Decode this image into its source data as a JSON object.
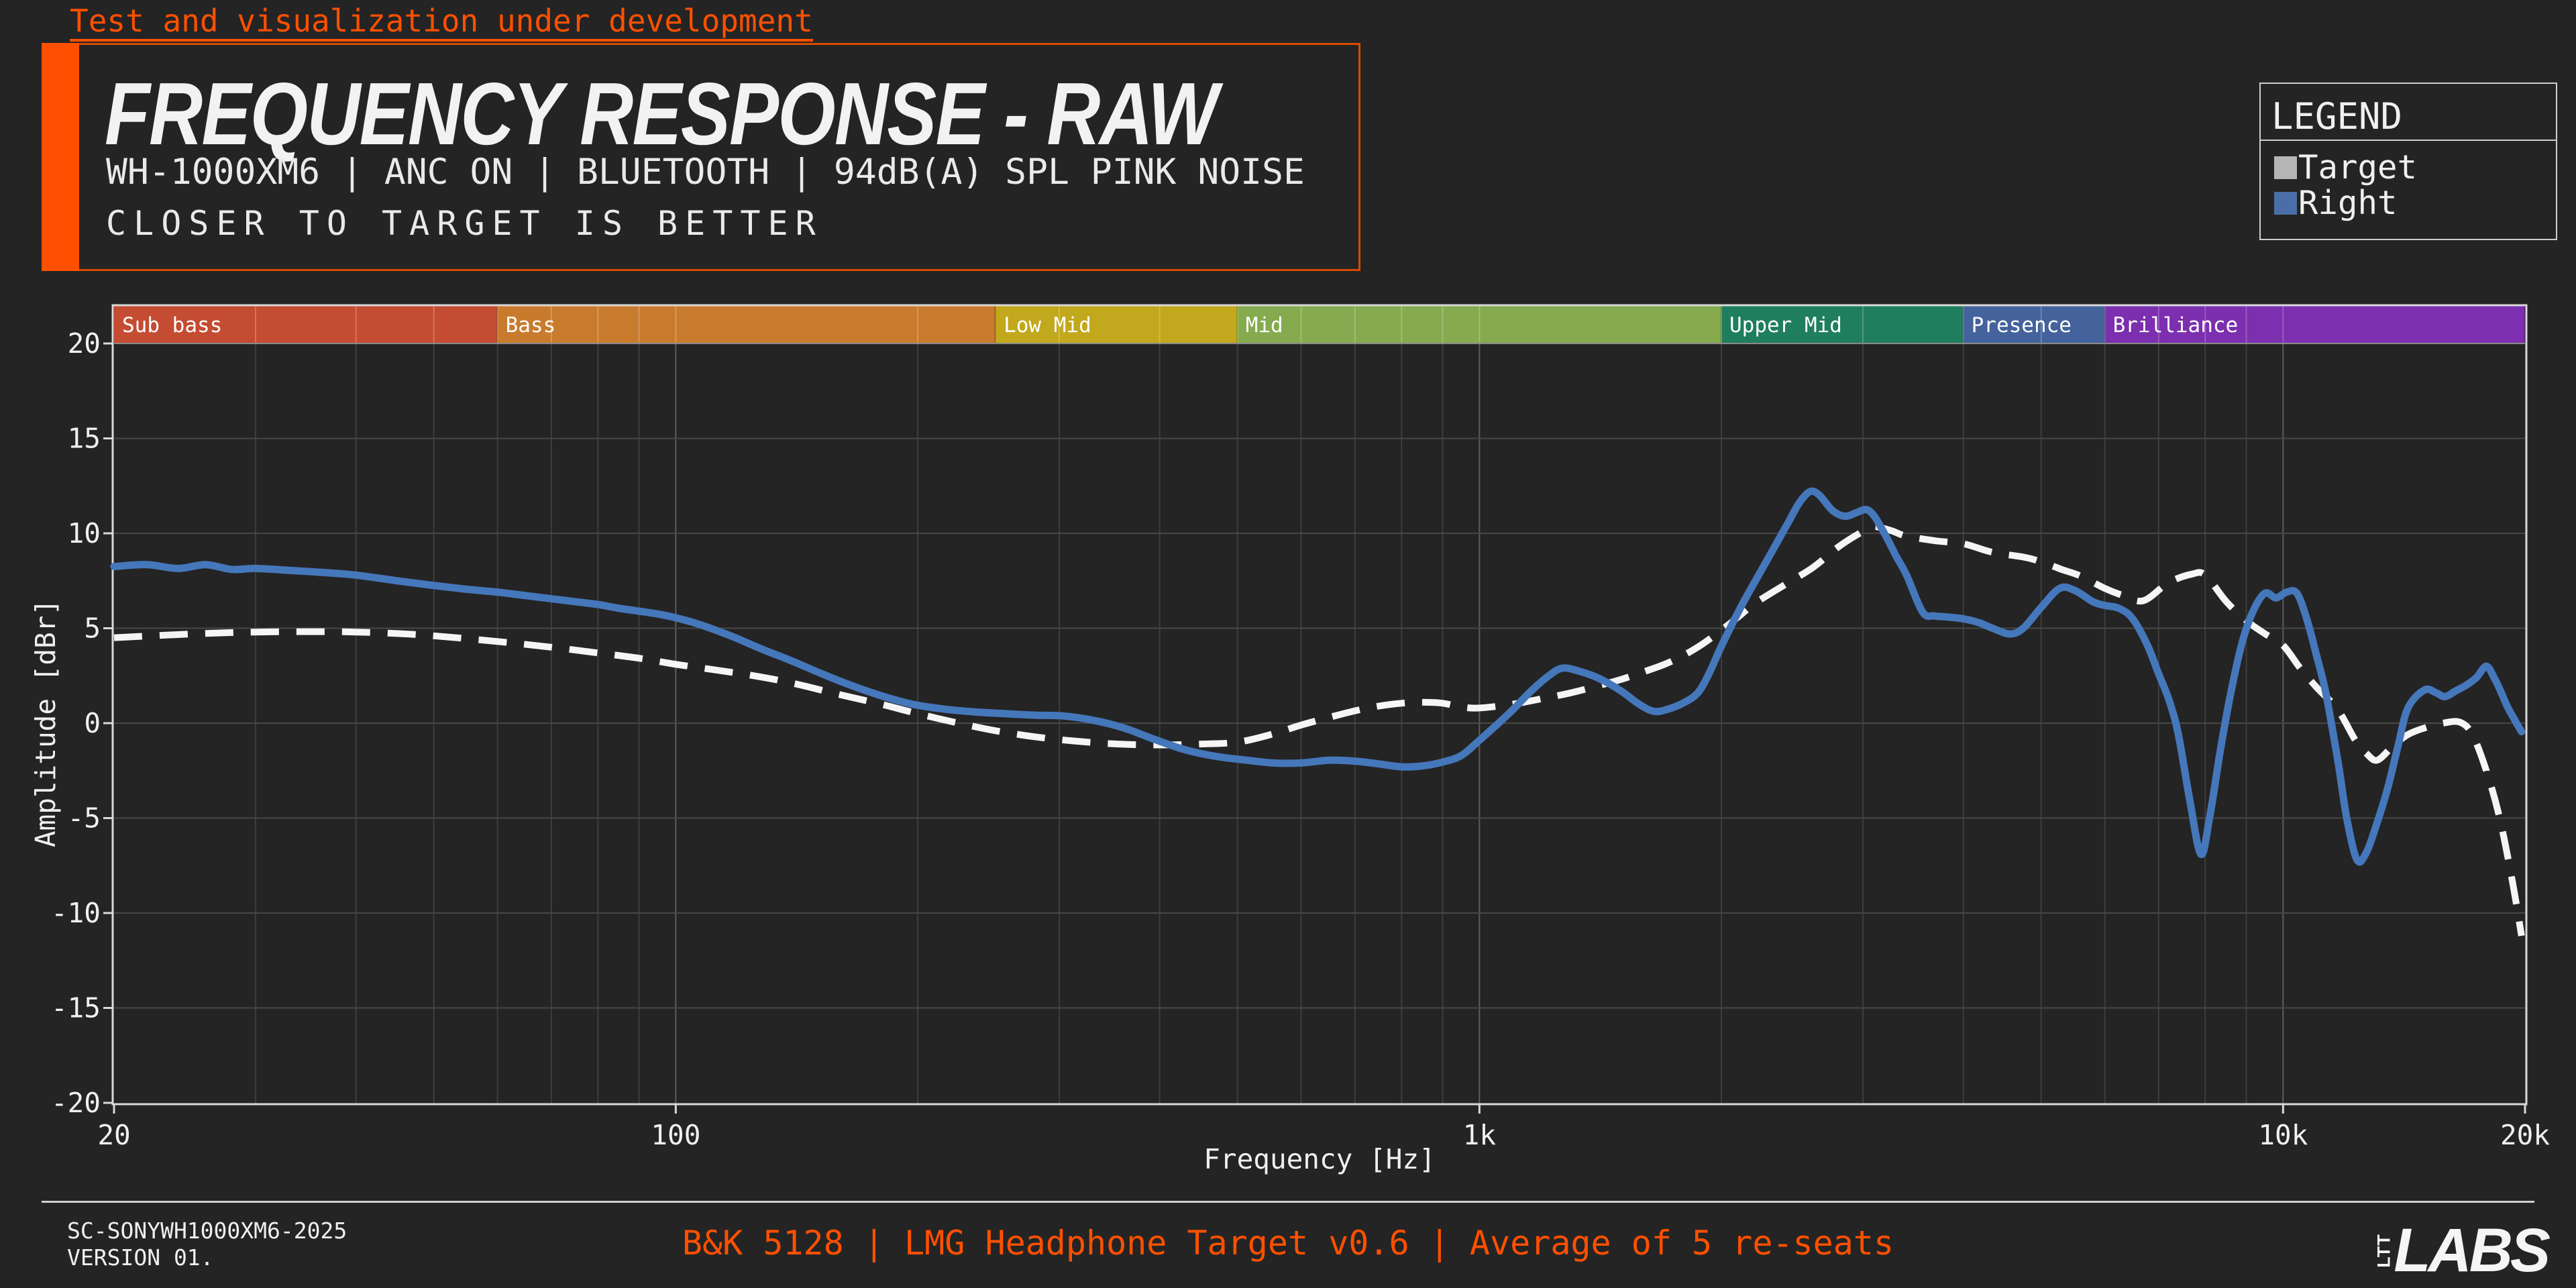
{
  "dev_notice": "Test and visualization under development",
  "header": {
    "title": "FREQUENCY RESPONSE - RAW",
    "subtitle": "WH-1000XM6 | ANC ON | BLUETOOTH | 94dB(A) SPL PINK NOISE",
    "tagline": "CLOSER TO TARGET IS BETTER"
  },
  "legend": {
    "title": "LEGEND",
    "items": [
      {
        "label": "Target",
        "color": "#b5b5b5"
      },
      {
        "label": "Right",
        "color": "#4a6fa8"
      }
    ]
  },
  "footer": {
    "left_line1": "SC-SONYWH1000XM6-2025",
    "left_line2": "VERSION 01.",
    "center": "B&K 5128 | LMG Headphone Target v0.6 | Average of 5 re-seats",
    "logo_small": "LTT",
    "logo_large": "LABS"
  },
  "colors": {
    "background": "#242424",
    "accent": "#fe5000",
    "text": "#f0f0f0",
    "grid_minor": "#3e3e3e",
    "grid_major": "#5c5c5c",
    "grid_horizontal": "#474747",
    "spine": "#d9d9d9",
    "band_grid_overlay": "rgba(255,255,255,0.22)"
  },
  "chart_data": {
    "type": "line",
    "title": "FREQUENCY RESPONSE - RAW",
    "xlabel": "Frequency [Hz]",
    "ylabel": "Amplitude [dBr]",
    "x_scale": "log",
    "xlim": [
      20,
      20000
    ],
    "ylim": [
      -20,
      20
    ],
    "grid": true,
    "legend_position": "top-right",
    "x_ticks": [
      {
        "value": 20,
        "label": "20"
      },
      {
        "value": 100,
        "label": "100"
      },
      {
        "value": 1000,
        "label": "1k"
      },
      {
        "value": 10000,
        "label": "10k"
      },
      {
        "value": 20000,
        "label": "20k"
      }
    ],
    "x_minor_gridlines": [
      30,
      40,
      50,
      60,
      70,
      80,
      90,
      200,
      300,
      400,
      500,
      600,
      700,
      800,
      900,
      2000,
      3000,
      4000,
      5000,
      6000,
      7000,
      8000,
      9000
    ],
    "y_ticks": [
      20,
      15,
      10,
      5,
      0,
      -5,
      -10,
      -15,
      -20
    ],
    "bands": [
      {
        "label": "Sub bass",
        "from": 20,
        "to": 60,
        "color": "#c44c32"
      },
      {
        "label": "Bass",
        "from": 60,
        "to": 250,
        "color": "#c97b2d"
      },
      {
        "label": "Low Mid",
        "from": 250,
        "to": 500,
        "color": "#c2a81c"
      },
      {
        "label": "Mid",
        "from": 500,
        "to": 2000,
        "color": "#85ab4e"
      },
      {
        "label": "Upper Mid",
        "from": 2000,
        "to": 4000,
        "color": "#1f7e5e"
      },
      {
        "label": "Presence",
        "from": 4000,
        "to": 6000,
        "color": "#44639c"
      },
      {
        "label": "Brilliance",
        "from": 6000,
        "to": 20000,
        "color": "#7c2fae"
      }
    ],
    "series": [
      {
        "name": "Target",
        "style": "dashed",
        "color": "#f5f5f5",
        "points": [
          [
            20,
            4.5
          ],
          [
            25,
            4.7
          ],
          [
            30,
            4.8
          ],
          [
            36,
            4.82
          ],
          [
            40,
            4.8
          ],
          [
            45,
            4.72
          ],
          [
            50,
            4.6
          ],
          [
            60,
            4.3
          ],
          [
            70,
            4.0
          ],
          [
            80,
            3.7
          ],
          [
            90,
            3.42
          ],
          [
            100,
            3.1
          ],
          [
            110,
            2.85
          ],
          [
            125,
            2.5
          ],
          [
            140,
            2.1
          ],
          [
            160,
            1.5
          ],
          [
            180,
            1.0
          ],
          [
            200,
            0.5
          ],
          [
            225,
            0.0
          ],
          [
            250,
            -0.4
          ],
          [
            280,
            -0.72
          ],
          [
            315,
            -0.95
          ],
          [
            355,
            -1.1
          ],
          [
            400,
            -1.15
          ],
          [
            450,
            -1.1
          ],
          [
            500,
            -1.0
          ],
          [
            550,
            -0.6
          ],
          [
            600,
            -0.1
          ],
          [
            650,
            0.3
          ],
          [
            700,
            0.65
          ],
          [
            750,
            0.9
          ],
          [
            800,
            1.05
          ],
          [
            850,
            1.1
          ],
          [
            900,
            1.05
          ],
          [
            950,
            0.85
          ],
          [
            1000,
            0.8
          ],
          [
            1100,
            1.0
          ],
          [
            1200,
            1.3
          ],
          [
            1300,
            1.6
          ],
          [
            1400,
            1.95
          ],
          [
            1500,
            2.3
          ],
          [
            1600,
            2.7
          ],
          [
            1700,
            3.1
          ],
          [
            1800,
            3.6
          ],
          [
            1900,
            4.2
          ],
          [
            2000,
            4.9
          ],
          [
            2100,
            5.6
          ],
          [
            2200,
            6.3
          ],
          [
            2400,
            7.3
          ],
          [
            2600,
            8.2
          ],
          [
            2800,
            9.3
          ],
          [
            3000,
            10.1
          ],
          [
            3100,
            10.35
          ],
          [
            3250,
            10.15
          ],
          [
            3400,
            9.85
          ],
          [
            3700,
            9.6
          ],
          [
            4000,
            9.45
          ],
          [
            4350,
            9.0
          ],
          [
            4750,
            8.75
          ],
          [
            5000,
            8.5
          ],
          [
            5300,
            8.1
          ],
          [
            5600,
            7.75
          ],
          [
            6000,
            7.1
          ],
          [
            6300,
            6.75
          ],
          [
            6700,
            6.45
          ],
          [
            7200,
            7.4
          ],
          [
            7700,
            7.85
          ],
          [
            8000,
            7.8
          ],
          [
            8500,
            6.4
          ],
          [
            9000,
            5.4
          ],
          [
            9500,
            4.7
          ],
          [
            10000,
            4.1
          ],
          [
            10500,
            2.9
          ],
          [
            11000,
            1.9
          ],
          [
            11700,
            0.7
          ],
          [
            12300,
            -0.9
          ],
          [
            12700,
            -1.6
          ],
          [
            13100,
            -1.95
          ],
          [
            13700,
            -1.2
          ],
          [
            14300,
            -0.6
          ],
          [
            15000,
            -0.25
          ],
          [
            15800,
            0.0
          ],
          [
            16600,
            0.05
          ],
          [
            17200,
            -0.6
          ],
          [
            17900,
            -2.5
          ],
          [
            18600,
            -5.0
          ],
          [
            19300,
            -8.4
          ],
          [
            19800,
            -11.2
          ]
        ]
      },
      {
        "name": "Right",
        "style": "solid",
        "color": "#4577bb",
        "points": [
          [
            20,
            8.25
          ],
          [
            22,
            8.35
          ],
          [
            24,
            8.15
          ],
          [
            26,
            8.35
          ],
          [
            28,
            8.1
          ],
          [
            30,
            8.15
          ],
          [
            33,
            8.05
          ],
          [
            36,
            7.95
          ],
          [
            40,
            7.8
          ],
          [
            45,
            7.5
          ],
          [
            50,
            7.25
          ],
          [
            55,
            7.05
          ],
          [
            60,
            6.9
          ],
          [
            65,
            6.72
          ],
          [
            70,
            6.55
          ],
          [
            75,
            6.4
          ],
          [
            80,
            6.25
          ],
          [
            85,
            6.05
          ],
          [
            90,
            5.9
          ],
          [
            95,
            5.75
          ],
          [
            100,
            5.55
          ],
          [
            107,
            5.2
          ],
          [
            117,
            4.6
          ],
          [
            128,
            3.9
          ],
          [
            139,
            3.3
          ],
          [
            152,
            2.6
          ],
          [
            165,
            2.0
          ],
          [
            180,
            1.45
          ],
          [
            197,
            1.0
          ],
          [
            215,
            0.75
          ],
          [
            234,
            0.6
          ],
          [
            256,
            0.5
          ],
          [
            280,
            0.42
          ],
          [
            303,
            0.38
          ],
          [
            331,
            0.15
          ],
          [
            361,
            -0.25
          ],
          [
            394,
            -0.85
          ],
          [
            430,
            -1.4
          ],
          [
            470,
            -1.75
          ],
          [
            513,
            -1.95
          ],
          [
            555,
            -2.1
          ],
          [
            600,
            -2.1
          ],
          [
            650,
            -1.95
          ],
          [
            700,
            -2.0
          ],
          [
            750,
            -2.15
          ],
          [
            800,
            -2.3
          ],
          [
            850,
            -2.25
          ],
          [
            900,
            -2.05
          ],
          [
            950,
            -1.7
          ],
          [
            1000,
            -0.9
          ],
          [
            1050,
            -0.1
          ],
          [
            1100,
            0.7
          ],
          [
            1160,
            1.7
          ],
          [
            1220,
            2.5
          ],
          [
            1270,
            2.9
          ],
          [
            1340,
            2.7
          ],
          [
            1410,
            2.35
          ],
          [
            1500,
            1.7
          ],
          [
            1580,
            1.0
          ],
          [
            1650,
            0.62
          ],
          [
            1720,
            0.75
          ],
          [
            1800,
            1.1
          ],
          [
            1870,
            1.6
          ],
          [
            1930,
            2.6
          ],
          [
            2000,
            4.05
          ],
          [
            2120,
            6.2
          ],
          [
            2260,
            8.3
          ],
          [
            2410,
            10.4
          ],
          [
            2500,
            11.6
          ],
          [
            2580,
            12.2
          ],
          [
            2650,
            12.0
          ],
          [
            2750,
            11.2
          ],
          [
            2850,
            10.9
          ],
          [
            2950,
            11.1
          ],
          [
            3030,
            11.25
          ],
          [
            3100,
            10.9
          ],
          [
            3200,
            9.9
          ],
          [
            3300,
            8.8
          ],
          [
            3400,
            7.8
          ],
          [
            3560,
            5.85
          ],
          [
            3680,
            5.65
          ],
          [
            3800,
            5.6
          ],
          [
            4000,
            5.5
          ],
          [
            4180,
            5.3
          ],
          [
            4350,
            5.0
          ],
          [
            4570,
            4.7
          ],
          [
            4750,
            5.0
          ],
          [
            5000,
            6.1
          ],
          [
            5270,
            7.1
          ],
          [
            5500,
            7.0
          ],
          [
            5800,
            6.4
          ],
          [
            6000,
            6.2
          ],
          [
            6250,
            6.05
          ],
          [
            6500,
            5.5
          ],
          [
            6780,
            4.1
          ],
          [
            7000,
            2.6
          ],
          [
            7200,
            1.3
          ],
          [
            7400,
            -0.5
          ],
          [
            7650,
            -4.0
          ],
          [
            7900,
            -6.9
          ],
          [
            8100,
            -5.0
          ],
          [
            8350,
            -1.5
          ],
          [
            8600,
            1.5
          ],
          [
            8900,
            4.3
          ],
          [
            9200,
            6.0
          ],
          [
            9500,
            6.85
          ],
          [
            9800,
            6.6
          ],
          [
            10100,
            6.9
          ],
          [
            10400,
            6.85
          ],
          [
            10700,
            5.5
          ],
          [
            11000,
            3.6
          ],
          [
            11300,
            1.6
          ],
          [
            11700,
            -2.0
          ],
          [
            12000,
            -5.0
          ],
          [
            12360,
            -7.2
          ],
          [
            12700,
            -6.8
          ],
          [
            13100,
            -5.2
          ],
          [
            13500,
            -3.4
          ],
          [
            13900,
            -1.2
          ],
          [
            14300,
            0.8
          ],
          [
            15000,
            1.75
          ],
          [
            15500,
            1.6
          ],
          [
            15900,
            1.4
          ],
          [
            16400,
            1.7
          ],
          [
            16900,
            2.0
          ],
          [
            17400,
            2.4
          ],
          [
            17900,
            3.0
          ],
          [
            18300,
            2.4
          ],
          [
            18600,
            1.8
          ],
          [
            19000,
            0.9
          ],
          [
            19400,
            0.2
          ],
          [
            19800,
            -0.45
          ]
        ]
      }
    ]
  }
}
